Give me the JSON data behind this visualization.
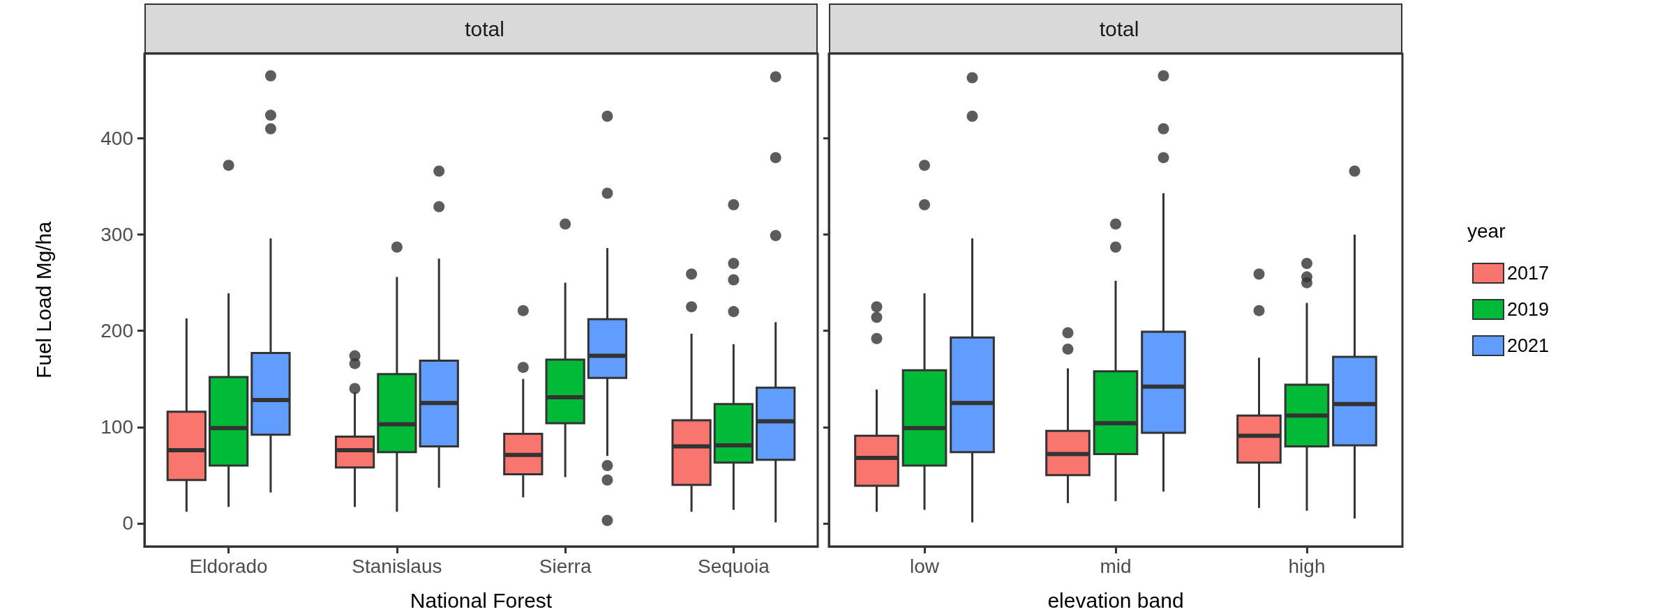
{
  "chart_data": [
    {
      "type": "box",
      "title": "total",
      "xlabel": "National Forest",
      "ylabel": "Fuel Load Mg/ha",
      "categories": [
        "Eldorado",
        "Stanislaus",
        "Sierra",
        "Sequoia"
      ],
      "ylim": [
        -24,
        488
      ],
      "yticks": [
        0,
        100,
        200,
        300,
        400
      ],
      "series": [
        {
          "color": "#f8766d",
          "boxes": [
            {
              "low": 12,
              "q1": 45,
              "median": 76,
              "q3": 116,
              "high": 213
            },
            {
              "low": 17,
              "q1": 58,
              "median": 76,
              "q3": 90,
              "high": 136,
              "outliers": [
                140,
                166,
                174
              ]
            },
            {
              "low": 27,
              "q1": 51,
              "median": 71,
              "q3": 93,
              "high": 150,
              "outliers": [
                162,
                221
              ]
            },
            {
              "low": 12,
              "q1": 40,
              "median": 80,
              "q3": 107,
              "high": 197,
              "outliers": [
                225,
                259
              ]
            }
          ]
        },
        {
          "color": "#00ba38",
          "boxes": [
            {
              "low": 17,
              "q1": 60,
              "median": 99,
              "q3": 152,
              "high": 239,
              "outliers": [
                372
              ]
            },
            {
              "low": 12,
              "q1": 74,
              "median": 103,
              "q3": 155,
              "high": 256,
              "outliers": [
                287
              ]
            },
            {
              "low": 48,
              "q1": 104,
              "median": 131,
              "q3": 170,
              "high": 250,
              "outliers": [
                311
              ]
            },
            {
              "low": 14,
              "q1": 63,
              "median": 81,
              "q3": 124,
              "high": 186,
              "outliers": [
                220,
                253,
                270,
                331
              ]
            }
          ]
        },
        {
          "color": "#619cff",
          "boxes": [
            {
              "low": 32,
              "q1": 92,
              "median": 128,
              "q3": 177,
              "high": 296,
              "outliers": [
                410,
                424,
                465
              ]
            },
            {
              "low": 37,
              "q1": 80,
              "median": 125,
              "q3": 169,
              "high": 275,
              "outliers": [
                329,
                366
              ]
            },
            {
              "low": 70,
              "q1": 151,
              "median": 174,
              "q3": 212,
              "high": 286,
              "outliers": [
                3,
                45,
                60,
                343,
                423
              ]
            },
            {
              "low": 1,
              "q1": 66,
              "median": 106,
              "q3": 141,
              "high": 209,
              "outliers": [
                299,
                380,
                464
              ]
            }
          ]
        }
      ]
    },
    {
      "type": "box",
      "title": "total",
      "xlabel": "elevation band",
      "legend_title": "year",
      "legend": "right",
      "tick_labels": "x",
      "categories": [
        "low",
        "mid",
        "high"
      ],
      "ylim": [
        -24,
        488
      ],
      "yticks": [
        0,
        100,
        200,
        300,
        400
      ],
      "series": [
        {
          "name": "2017",
          "color": "#f8766d",
          "boxes": [
            {
              "low": 12,
              "q1": 39,
              "median": 68,
              "q3": 91,
              "high": 139,
              "outliers": [
                192,
                214,
                225
              ]
            },
            {
              "low": 21,
              "q1": 50,
              "median": 72,
              "q3": 96,
              "high": 161,
              "outliers": [
                181,
                198
              ]
            },
            {
              "low": 16,
              "q1": 63,
              "median": 91,
              "q3": 112,
              "high": 172,
              "outliers": [
                221,
                259
              ]
            }
          ]
        },
        {
          "name": "2019",
          "color": "#00ba38",
          "boxes": [
            {
              "low": 14,
              "q1": 60,
              "median": 99,
              "q3": 159,
              "high": 239,
              "outliers": [
                331,
                372
              ]
            },
            {
              "low": 23,
              "q1": 72,
              "median": 104,
              "q3": 158,
              "high": 252,
              "outliers": [
                287,
                311
              ]
            },
            {
              "low": 13,
              "q1": 80,
              "median": 112,
              "q3": 144,
              "high": 229,
              "outliers": [
                250,
                256,
                270
              ]
            }
          ]
        },
        {
          "name": "2021",
          "color": "#619cff",
          "boxes": [
            {
              "low": 1,
              "q1": 74,
              "median": 125,
              "q3": 193,
              "high": 296,
              "outliers": [
                423,
                463
              ]
            },
            {
              "low": 33,
              "q1": 94,
              "median": 142,
              "q3": 199,
              "high": 343,
              "outliers": [
                380,
                410,
                465
              ]
            },
            {
              "low": 5,
              "q1": 81,
              "median": 124,
              "q3": 173,
              "high": 300,
              "outliers": [
                366
              ]
            }
          ]
        }
      ]
    }
  ]
}
